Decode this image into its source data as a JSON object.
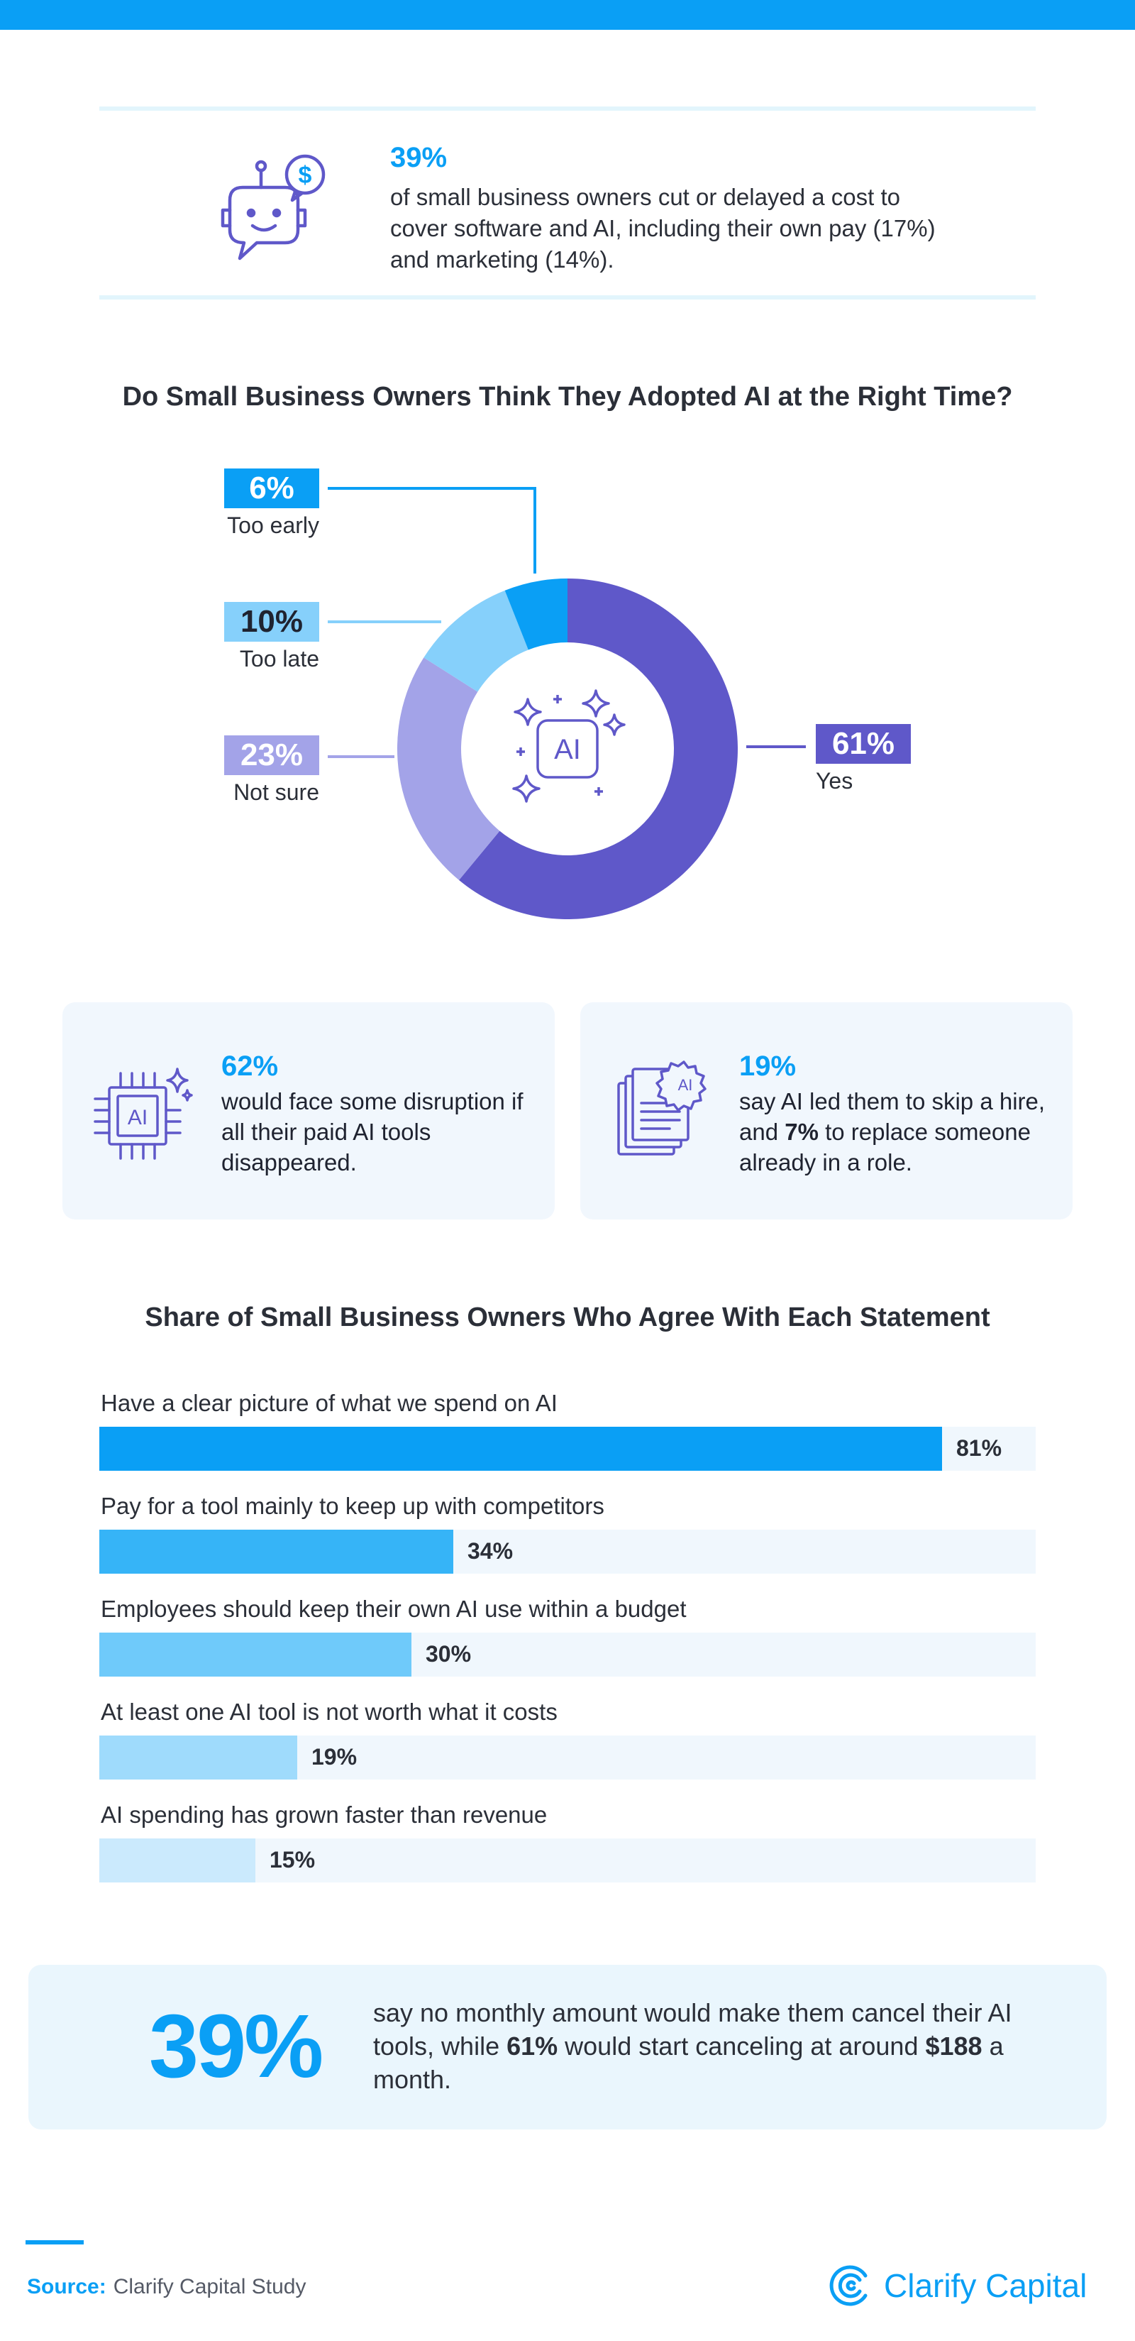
{
  "colors": {
    "accent": "#0a9ff5",
    "purple": "#5f58c9",
    "lavender": "#a3a3e8",
    "sky": "#86d0fb"
  },
  "stat1": {
    "icon": "robot-chat-dollar-icon",
    "percent": "39%",
    "text": "of small business owners cut or delayed a cost to cover software and AI, including their own pay (17%) and marketing (14%)."
  },
  "donut_section": {
    "title": "Do Small Business Owners Think They Adopted AI at the Right Time?",
    "center_icon": "ai-sparkles-icon"
  },
  "cards": [
    {
      "icon": "ai-chip-icon",
      "percent": "62%",
      "text": "would face some disruption if all their paid AI tools disappeared."
    },
    {
      "icon": "ai-documents-icon",
      "percent": "19%",
      "text_a": "say AI led them to skip a hire, and ",
      "text_bold": "7%",
      "text_b": " to replace someone already in a role."
    }
  ],
  "bar_section": {
    "title": "Share of Small Business Owners Who Agree With Each Statement"
  },
  "chart_data": [
    {
      "type": "pie",
      "title": "Do Small Business Owners Think They Adopted AI at the Right Time?",
      "categories": [
        "Yes",
        "Not sure",
        "Too late",
        "Too early"
      ],
      "values": [
        61,
        23,
        10,
        6
      ],
      "value_labels": [
        "61%",
        "23%",
        "10%",
        "6%"
      ],
      "colors": [
        "#5f58c9",
        "#a3a3e8",
        "#86d0fb",
        "#0a9ff5"
      ]
    },
    {
      "type": "bar",
      "orientation": "horizontal",
      "title": "Share of Small Business Owners Who Agree With Each Statement",
      "categories": [
        "Have a clear picture of what we spend on AI",
        "Pay for a tool mainly to keep up with competitors",
        "Employees should keep their own AI use within a budget",
        "At least one AI tool is not worth what it costs",
        "AI spending has grown faster than revenue"
      ],
      "values": [
        81,
        34,
        30,
        19,
        15
      ],
      "value_labels": [
        "81%",
        "34%",
        "30%",
        "19%",
        "15%"
      ],
      "xlim": [
        0,
        90
      ],
      "colors": [
        "#0a9ff5",
        "#36b4f7",
        "#6fcafa",
        "#9fdbfc",
        "#cbeafd"
      ]
    }
  ],
  "callout": {
    "big": "39%",
    "text_a": "say no monthly amount would make them cancel their AI tools, while ",
    "bold1": "61%",
    "text_b": " would start canceling at around ",
    "bold2": "$188",
    "text_c": " a month."
  },
  "footer": {
    "source_label": "Source:",
    "source_text": "Clarify Capital Study",
    "brand": "Clarify Capital",
    "brand_icon": "clarify-logo-icon"
  }
}
